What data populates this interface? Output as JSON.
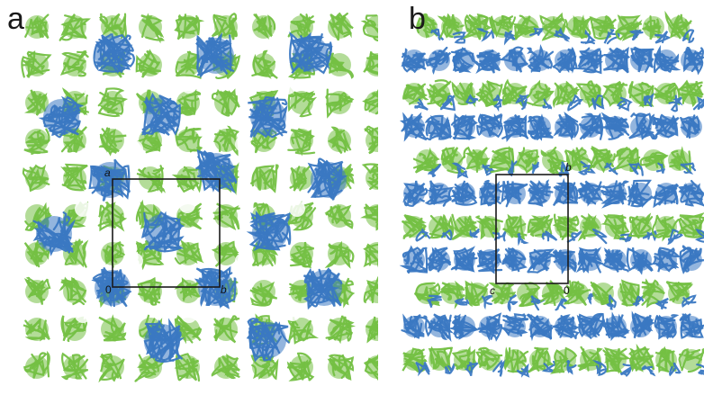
{
  "figure": {
    "panels": [
      {
        "letter": "a",
        "cell_labels": {
          "top_left": "a",
          "bottom_left": "0",
          "bottom_right": "b"
        }
      },
      {
        "letter": "b",
        "cell_labels": {
          "top_right": "b",
          "bottom_left": "c",
          "bottom_right": "0"
        }
      }
    ]
  },
  "colors": {
    "green_subunit": "#74c043",
    "blue_subunit": "#3a78c2",
    "unit_cell_line": "#1a1a1a",
    "background": "#ffffff"
  }
}
